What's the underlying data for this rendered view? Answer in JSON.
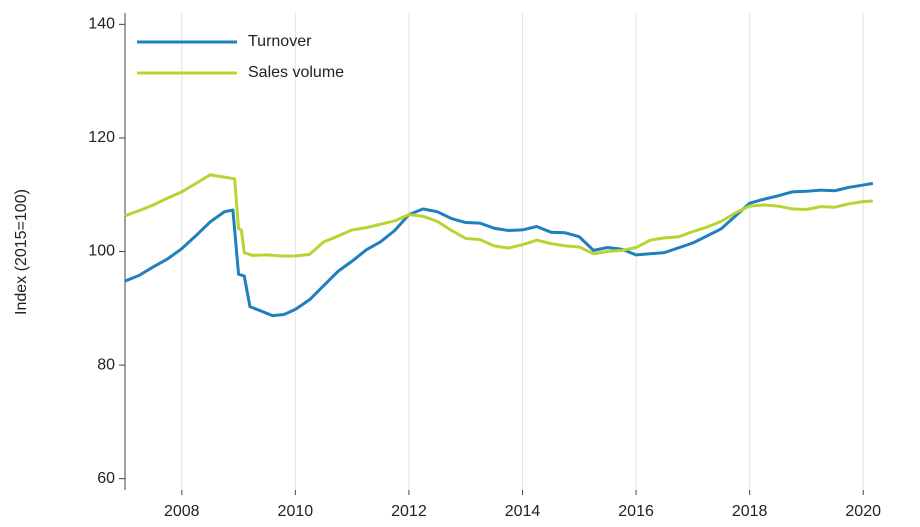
{
  "chart_data": {
    "type": "line",
    "ylabel": "Index (2015=100)",
    "xlim": [
      2007,
      2021
    ],
    "xticks": [
      2008,
      2010,
      2012,
      2014,
      2016,
      2018,
      2020
    ],
    "ylim": [
      58,
      142
    ],
    "yticks": [
      60,
      80,
      100,
      120,
      140
    ],
    "grid": "x",
    "legend": "upper left",
    "series": [
      {
        "name": "Turnover",
        "color": "#1f80be",
        "x": [
          2007,
          2007.25,
          2007.5,
          2007.75,
          2008,
          2008.25,
          2008.5,
          2008.75,
          2008.9,
          2009,
          2009.1,
          2009.2,
          2009.4,
          2009.6,
          2009.8,
          2010,
          2010.25,
          2010.5,
          2010.75,
          2011,
          2011.25,
          2011.5,
          2011.75,
          2012,
          2012.25,
          2012.5,
          2012.75,
          2013,
          2013.25,
          2013.5,
          2013.75,
          2014,
          2014.25,
          2014.5,
          2014.75,
          2015,
          2015.25,
          2015.5,
          2015.75,
          2016,
          2016.5,
          2017,
          2017.5,
          2018,
          2018.25,
          2018.5,
          2018.75,
          2019,
          2019.25,
          2019.5,
          2019.75,
          2020,
          2020.17
        ],
        "values": [
          94.8,
          95.8,
          97.3,
          98.7,
          100.5,
          102.8,
          105.2,
          107,
          107.3,
          96,
          95.7,
          90.3,
          89.5,
          88.7,
          88.9,
          89.8,
          91.5,
          94,
          96.5,
          98.3,
          100.3,
          101.7,
          103.7,
          106.5,
          107.5,
          107,
          105.8,
          105.1,
          105,
          104.1,
          103.7,
          103.8,
          104.4,
          103.4,
          103.3,
          102.6,
          100.2,
          100.7,
          100.4,
          99.4,
          99.8,
          101.5,
          104,
          108.5,
          109.2,
          109.8,
          110.5,
          110.6,
          110.8,
          110.7,
          111.3,
          111.7,
          112
        ]
      },
      {
        "name": "Sales volume",
        "color": "#b8d433",
        "x": [
          2007,
          2007.25,
          2007.5,
          2007.75,
          2008,
          2008.25,
          2008.5,
          2008.75,
          2008.93,
          2009,
          2009.05,
          2009.1,
          2009.25,
          2009.5,
          2009.75,
          2010,
          2010.25,
          2010.5,
          2010.75,
          2011,
          2011.25,
          2011.5,
          2011.75,
          2012,
          2012.25,
          2012.5,
          2012.75,
          2013,
          2013.25,
          2013.5,
          2013.75,
          2014,
          2014.25,
          2014.5,
          2014.75,
          2015,
          2015.25,
          2015.5,
          2015.75,
          2016,
          2016.25,
          2016.5,
          2016.75,
          2017,
          2017.25,
          2017.5,
          2017.75,
          2018,
          2018.25,
          2018.5,
          2018.75,
          2019,
          2019.25,
          2019.5,
          2019.75,
          2020,
          2020.17
        ],
        "values": [
          106.3,
          107.2,
          108.2,
          109.4,
          110.5,
          112,
          113.5,
          113.1,
          112.8,
          104,
          103.8,
          99.8,
          99.3,
          99.4,
          99.2,
          99.2,
          99.5,
          101.7,
          102.7,
          103.8,
          104.2,
          104.8,
          105.4,
          106.5,
          106.2,
          105.3,
          103.7,
          102.3,
          102.1,
          101,
          100.6,
          101.2,
          102,
          101.4,
          101,
          100.8,
          99.6,
          100,
          100.2,
          100.7,
          102,
          102.4,
          102.6,
          103.5,
          104.3,
          105.3,
          106.8,
          108,
          108.2,
          108,
          107.5,
          107.4,
          107.9,
          107.8,
          108.4,
          108.8,
          108.9
        ]
      }
    ]
  }
}
